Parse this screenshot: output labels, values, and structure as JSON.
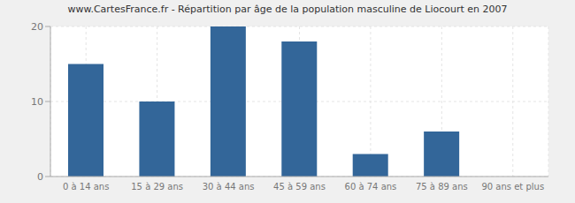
{
  "chart_data": {
    "type": "bar",
    "title": "www.CartesFrance.fr - Répartition par âge de la population masculine de Liocourt en 2007",
    "categories": [
      "0 à 14 ans",
      "15 à 29 ans",
      "30 à 44 ans",
      "45 à 59 ans",
      "60 à 74 ans",
      "75 à 89 ans",
      "90 ans et plus"
    ],
    "values": [
      15,
      10,
      20,
      18,
      3,
      6,
      0
    ],
    "color": "#336699",
    "ylim": [
      0,
      20
    ],
    "yticks": [
      0,
      10,
      20
    ],
    "grid": true
  }
}
